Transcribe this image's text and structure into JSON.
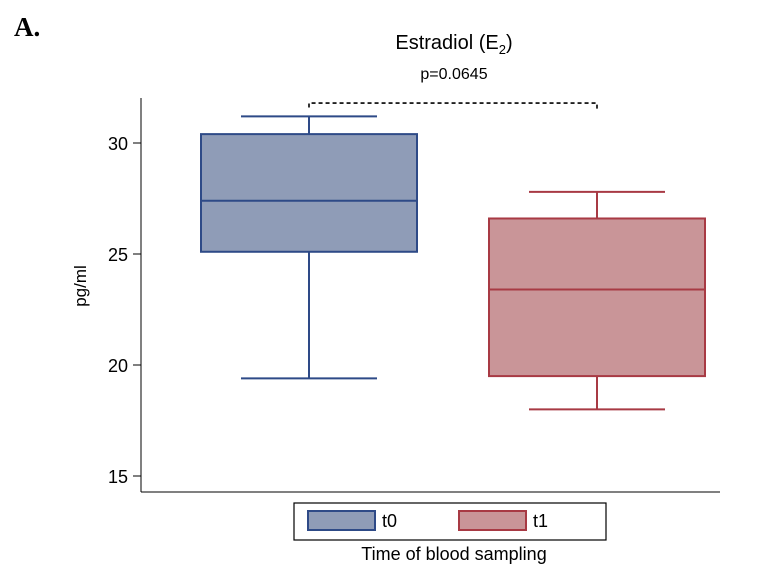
{
  "panel_label": "A.",
  "chart_data": {
    "type": "boxplot",
    "title": "Estradiol (E",
    "title_subscript": "2",
    "title_suffix": ")",
    "annotation": "p=0.0645",
    "ylabel": "pg/ml",
    "xlabel": "Time of blood sampling",
    "ylim": [
      15,
      32
    ],
    "yticks": [
      15,
      20,
      25,
      30
    ],
    "grid": false,
    "legend_position": "bottom",
    "series": [
      {
        "name": "t0",
        "whisker_low": 19.4,
        "q1": 25.1,
        "median": 27.4,
        "q3": 30.4,
        "whisker_high": 31.2,
        "fill": "#8f9cb7",
        "stroke": "#2e4a87"
      },
      {
        "name": "t1",
        "whisker_low": 18.0,
        "q1": 19.5,
        "median": 23.4,
        "q3": 26.6,
        "whisker_high": 27.8,
        "fill": "#c99598",
        "stroke": "#a83a44"
      }
    ],
    "bracket_top": 31.8,
    "bracket_right_end": 31.5
  }
}
